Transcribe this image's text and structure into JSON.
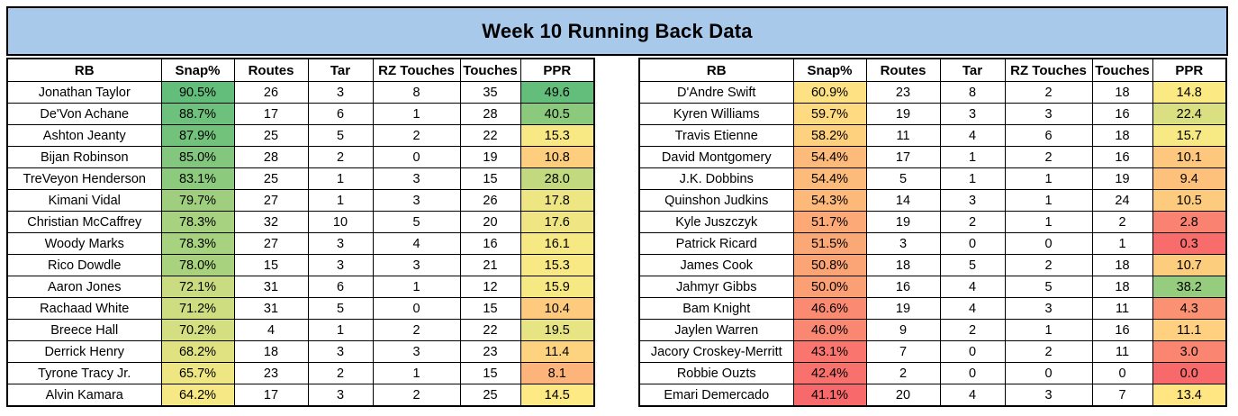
{
  "title": "Week 10 Running Back Data",
  "columns": [
    "RB",
    "Snap%",
    "Routes",
    "Tar",
    "RZ Touches",
    "Touches",
    "PPR"
  ],
  "colors": {
    "title_bg": "#A8C9EA",
    "border": "#000000",
    "scale_min": "#F8696B",
    "scale_mid": "#FFEB84",
    "scale_max": "#63BE7B"
  },
  "tables": [
    {
      "rows": [
        {
          "rb": "Jonathan Taylor",
          "snap": "90.5%",
          "snap_color": "#63BE7B",
          "routes": 26,
          "tar": 3,
          "rz": 8,
          "touches": 35,
          "ppr": "49.6",
          "ppr_color": "#63BE7B"
        },
        {
          "rb": "De'Von Achane",
          "snap": "88.7%",
          "snap_color": "#6DC17C",
          "routes": 17,
          "tar": 6,
          "rz": 1,
          "touches": 28,
          "ppr": "40.5",
          "ppr_color": "#8BCA7D"
        },
        {
          "rb": "Ashton Jeanty",
          "snap": "87.9%",
          "snap_color": "#72C27C",
          "routes": 25,
          "tar": 5,
          "rz": 2,
          "touches": 22,
          "ppr": "15.3",
          "ppr_color": "#F9E984"
        },
        {
          "rb": "Bijan Robinson",
          "snap": "85.0%",
          "snap_color": "#82C77D",
          "routes": 28,
          "tar": 2,
          "rz": 0,
          "touches": 19,
          "ppr": "10.8",
          "ppr_color": "#FDCE7E"
        },
        {
          "rb": "TreVeyon Henderson",
          "snap": "83.1%",
          "snap_color": "#8CCA7D",
          "routes": 25,
          "tar": 1,
          "rz": 3,
          "touches": 15,
          "ppr": "28.0",
          "ppr_color": "#C2D980"
        },
        {
          "rb": "Kimani Vidal",
          "snap": "79.7%",
          "snap_color": "#9FCF7E",
          "routes": 27,
          "tar": 1,
          "rz": 3,
          "touches": 26,
          "ppr": "17.8",
          "ppr_color": "#EEE683"
        },
        {
          "rb": "Christian McCaffrey",
          "snap": "78.3%",
          "snap_color": "#A7D27F",
          "routes": 32,
          "tar": 10,
          "rz": 5,
          "touches": 20,
          "ppr": "17.6",
          "ppr_color": "#EFE683"
        },
        {
          "rb": "Woody Marks",
          "snap": "78.3%",
          "snap_color": "#A7D27F",
          "routes": 27,
          "tar": 3,
          "rz": 4,
          "touches": 16,
          "ppr": "16.1",
          "ppr_color": "#F6E883"
        },
        {
          "rb": "Rico Dowdle",
          "snap": "78.0%",
          "snap_color": "#A9D27F",
          "routes": 15,
          "tar": 3,
          "rz": 3,
          "touches": 21,
          "ppr": "15.3",
          "ppr_color": "#F9E984"
        },
        {
          "rb": "Aaron Jones",
          "snap": "72.1%",
          "snap_color": "#CADC81",
          "routes": 31,
          "tar": 6,
          "rz": 1,
          "touches": 12,
          "ppr": "15.9",
          "ppr_color": "#F6E984"
        },
        {
          "rb": "Rachaad White",
          "snap": "71.2%",
          "snap_color": "#CFDD81",
          "routes": 31,
          "tar": 5,
          "rz": 0,
          "touches": 15,
          "ppr": "10.4",
          "ppr_color": "#FDCA7E"
        },
        {
          "rb": "Breece Hall",
          "snap": "70.2%",
          "snap_color": "#D4DF82",
          "routes": 4,
          "tar": 1,
          "rz": 2,
          "touches": 22,
          "ppr": "19.5",
          "ppr_color": "#E7E483"
        },
        {
          "rb": "Derrick Henry",
          "snap": "68.2%",
          "snap_color": "#E0E282",
          "routes": 18,
          "tar": 3,
          "rz": 3,
          "touches": 23,
          "ppr": "11.4",
          "ppr_color": "#FED37F"
        },
        {
          "rb": "Tyrone Tracy Jr.",
          "snap": "65.7%",
          "snap_color": "#EDE683",
          "routes": 23,
          "tar": 2,
          "rz": 1,
          "touches": 15,
          "ppr": "8.1",
          "ppr_color": "#FCB47A"
        },
        {
          "rb": "Alvin Kamara",
          "snap": "64.2%",
          "snap_color": "#F6E884",
          "routes": 17,
          "tar": 3,
          "rz": 2,
          "touches": 25,
          "ppr": "14.5",
          "ppr_color": "#FDEA84"
        }
      ]
    },
    {
      "rows": [
        {
          "rb": "D'Andre Swift",
          "snap": "60.9%",
          "snap_color": "#FEE182",
          "routes": 23,
          "tar": 8,
          "rz": 2,
          "touches": 18,
          "ppr": "14.8",
          "ppr_color": "#FBEA84"
        },
        {
          "rb": "Kyren Williams",
          "snap": "59.7%",
          "snap_color": "#FEDA81",
          "routes": 19,
          "tar": 3,
          "rz": 3,
          "touches": 16,
          "ppr": "22.4",
          "ppr_color": "#DAE082"
        },
        {
          "rb": "Travis Etienne",
          "snap": "58.2%",
          "snap_color": "#FED17F",
          "routes": 11,
          "tar": 4,
          "rz": 6,
          "touches": 18,
          "ppr": "15.7",
          "ppr_color": "#F7E984"
        },
        {
          "rb": "David Montgomery",
          "snap": "54.4%",
          "snap_color": "#FCBA7B",
          "routes": 17,
          "tar": 1,
          "rz": 2,
          "touches": 16,
          "ppr": "10.1",
          "ppr_color": "#FDC77D"
        },
        {
          "rb": "J.K. Dobbins",
          "snap": "54.4%",
          "snap_color": "#FCBA7B",
          "routes": 5,
          "tar": 1,
          "rz": 1,
          "touches": 19,
          "ppr": "9.4",
          "ppr_color": "#FDC17C"
        },
        {
          "rb": "Quinshon Judkins",
          "snap": "54.3%",
          "snap_color": "#FCB97A",
          "routes": 14,
          "tar": 3,
          "rz": 1,
          "touches": 24,
          "ppr": "10.5",
          "ppr_color": "#FDCB7E"
        },
        {
          "rb": "Kyle Juszczyk",
          "snap": "51.7%",
          "snap_color": "#FCA977",
          "routes": 19,
          "tar": 2,
          "rz": 1,
          "touches": 2,
          "ppr": "2.8",
          "ppr_color": "#F98370"
        },
        {
          "rb": "Patrick Ricard",
          "snap": "51.5%",
          "snap_color": "#FBA877",
          "routes": 3,
          "tar": 0,
          "rz": 0,
          "touches": 1,
          "ppr": "0.3",
          "ppr_color": "#F86C6C"
        },
        {
          "rb": "James Cook",
          "snap": "50.8%",
          "snap_color": "#FBA476",
          "routes": 18,
          "tar": 5,
          "rz": 2,
          "touches": 18,
          "ppr": "10.7",
          "ppr_color": "#FDCD7E"
        },
        {
          "rb": "Jahmyr Gibbs",
          "snap": "50.0%",
          "snap_color": "#FB9F75",
          "routes": 16,
          "tar": 4,
          "rz": 5,
          "touches": 18,
          "ppr": "38.2",
          "ppr_color": "#95CC7E"
        },
        {
          "rb": "Bam Knight",
          "snap": "46.6%",
          "snap_color": "#FA8A71",
          "routes": 19,
          "tar": 4,
          "rz": 3,
          "touches": 11,
          "ppr": "4.3",
          "ppr_color": "#FA9173"
        },
        {
          "rb": "Jaylen Warren",
          "snap": "46.0%",
          "snap_color": "#FA8771",
          "routes": 9,
          "tar": 2,
          "rz": 1,
          "touches": 16,
          "ppr": "11.1",
          "ppr_color": "#FED07F"
        },
        {
          "rb": "Jacory Croskey-Merritt",
          "snap": "43.1%",
          "snap_color": "#F9756D",
          "routes": 7,
          "tar": 0,
          "rz": 2,
          "touches": 11,
          "ppr": "3.0",
          "ppr_color": "#FA8570"
        },
        {
          "rb": "Robbie Ouzts",
          "snap": "42.4%",
          "snap_color": "#F8716D",
          "routes": 2,
          "tar": 0,
          "rz": 0,
          "touches": 0,
          "ppr": "0.0",
          "ppr_color": "#F8696B"
        },
        {
          "rb": "Emari Demercado",
          "snap": "41.1%",
          "snap_color": "#F8696B",
          "routes": 20,
          "tar": 4,
          "rz": 3,
          "touches": 7,
          "ppr": "13.4",
          "ppr_color": "#FFE683"
        }
      ]
    }
  ],
  "chart_data": [
    {
      "type": "table",
      "title": "Week 10 Running Back Data",
      "columns": [
        "RB",
        "Snap%",
        "Routes",
        "Tar",
        "RZ Touches",
        "Touches",
        "PPR"
      ],
      "rows": [
        [
          "Jonathan Taylor",
          "90.5%",
          26,
          3,
          8,
          35,
          49.6
        ],
        [
          "De'Von Achane",
          "88.7%",
          17,
          6,
          1,
          28,
          40.5
        ],
        [
          "Ashton Jeanty",
          "87.9%",
          25,
          5,
          2,
          22,
          15.3
        ],
        [
          "Bijan Robinson",
          "85.0%",
          28,
          2,
          0,
          19,
          10.8
        ],
        [
          "TreVeyon Henderson",
          "83.1%",
          25,
          1,
          3,
          15,
          28.0
        ],
        [
          "Kimani Vidal",
          "79.7%",
          27,
          1,
          3,
          26,
          17.8
        ],
        [
          "Christian McCaffrey",
          "78.3%",
          32,
          10,
          5,
          20,
          17.6
        ],
        [
          "Woody Marks",
          "78.3%",
          27,
          3,
          4,
          16,
          16.1
        ],
        [
          "Rico Dowdle",
          "78.0%",
          15,
          3,
          3,
          21,
          15.3
        ],
        [
          "Aaron Jones",
          "72.1%",
          31,
          6,
          1,
          12,
          15.9
        ],
        [
          "Rachaad White",
          "71.2%",
          31,
          5,
          0,
          15,
          10.4
        ],
        [
          "Breece Hall",
          "70.2%",
          4,
          1,
          2,
          22,
          19.5
        ],
        [
          "Derrick Henry",
          "68.2%",
          18,
          3,
          3,
          23,
          11.4
        ],
        [
          "Tyrone Tracy Jr.",
          "65.7%",
          23,
          2,
          1,
          15,
          8.1
        ],
        [
          "Alvin Kamara",
          "64.2%",
          17,
          3,
          2,
          25,
          14.5
        ]
      ]
    },
    {
      "type": "table",
      "title": "Week 10 Running Back Data",
      "columns": [
        "RB",
        "Snap%",
        "Routes",
        "Tar",
        "RZ Touches",
        "Touches",
        "PPR"
      ],
      "rows": [
        [
          "D'Andre Swift",
          "60.9%",
          23,
          8,
          2,
          18,
          14.8
        ],
        [
          "Kyren Williams",
          "59.7%",
          19,
          3,
          3,
          16,
          22.4
        ],
        [
          "Travis Etienne",
          "58.2%",
          11,
          4,
          6,
          18,
          15.7
        ],
        [
          "David Montgomery",
          "54.4%",
          17,
          1,
          2,
          16,
          10.1
        ],
        [
          "J.K. Dobbins",
          "54.4%",
          5,
          1,
          1,
          19,
          9.4
        ],
        [
          "Quinshon Judkins",
          "54.3%",
          14,
          3,
          1,
          24,
          10.5
        ],
        [
          "Kyle Juszczyk",
          "51.7%",
          19,
          2,
          1,
          2,
          2.8
        ],
        [
          "Patrick Ricard",
          "51.5%",
          3,
          0,
          0,
          1,
          0.3
        ],
        [
          "James Cook",
          "50.8%",
          18,
          5,
          2,
          18,
          10.7
        ],
        [
          "Jahmyr Gibbs",
          "50.0%",
          16,
          4,
          5,
          18,
          38.2
        ],
        [
          "Bam Knight",
          "46.6%",
          19,
          4,
          3,
          11,
          4.3
        ],
        [
          "Jaylen Warren",
          "46.0%",
          9,
          2,
          1,
          16,
          11.1
        ],
        [
          "Jacory Croskey-Merritt",
          "43.1%",
          7,
          0,
          2,
          11,
          3.0
        ],
        [
          "Robbie Ouzts",
          "42.4%",
          2,
          0,
          0,
          0,
          0.0
        ],
        [
          "Emari Demercado",
          "41.1%",
          20,
          4,
          3,
          7,
          13.4
        ]
      ]
    }
  ]
}
